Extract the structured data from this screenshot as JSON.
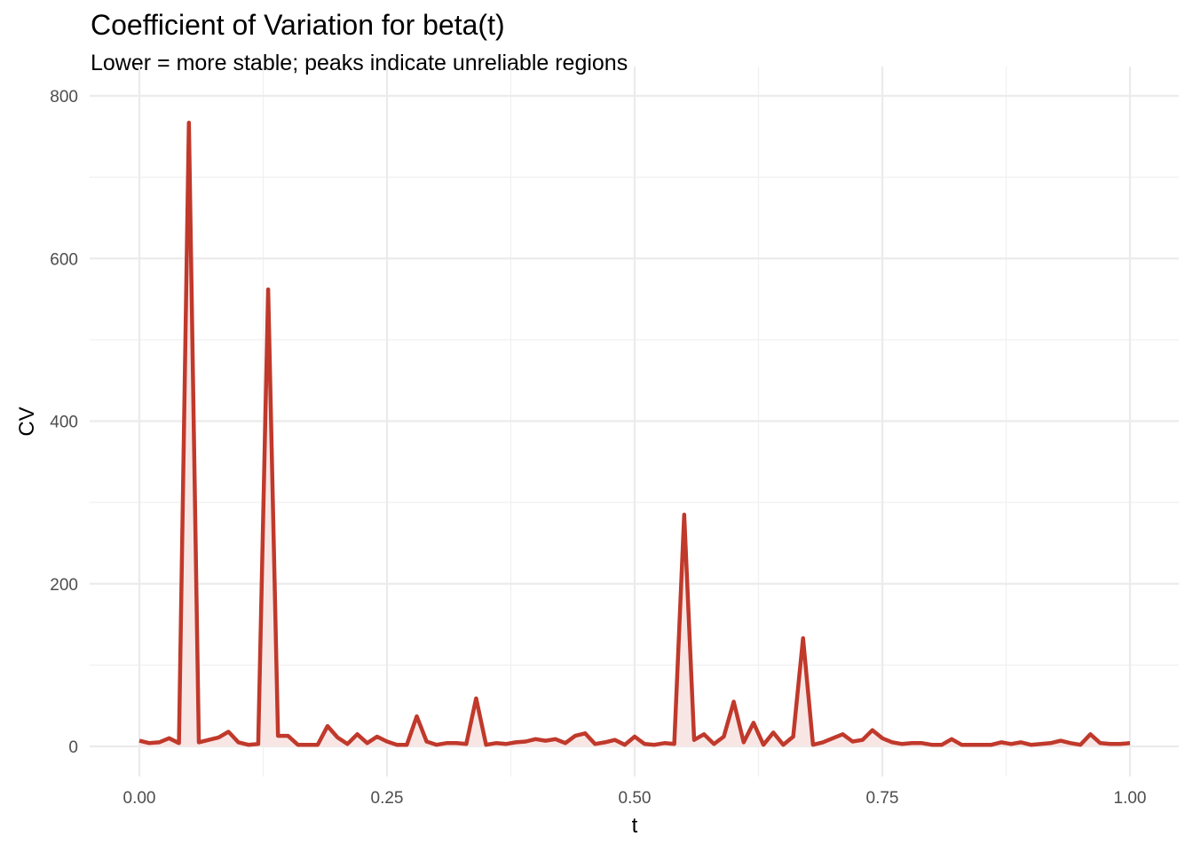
{
  "chart_data": {
    "type": "line",
    "title": "Coefficient of Variation for beta(t)",
    "subtitle": "Lower = more stable; peaks indicate unreliable regions",
    "xlabel": "t",
    "ylabel": "CV",
    "xlim": [
      0,
      1
    ],
    "ylim": [
      0,
      800
    ],
    "x_ticks": [
      0,
      0.25,
      0.5,
      0.75,
      1
    ],
    "x_tick_labels": [
      "0.00",
      "0.25",
      "0.50",
      "0.75",
      "1.00"
    ],
    "y_ticks": [
      0,
      200,
      400,
      600,
      800
    ],
    "y_tick_labels": [
      "0",
      "200",
      "400",
      "600",
      "800"
    ],
    "grid": true,
    "line_color": "#C0392B",
    "fill_color": "#F8E6E5",
    "x_start": 0,
    "x_step": 0.01,
    "values": [
      7,
      4,
      5,
      10,
      4,
      767,
      5,
      8,
      11,
      18,
      5,
      2,
      3,
      562,
      13,
      13,
      2,
      2,
      2,
      25,
      11,
      3,
      15,
      4,
      12,
      6,
      2,
      2,
      37,
      6,
      2,
      4,
      4,
      3,
      59,
      2,
      4,
      3,
      5,
      6,
      9,
      7,
      9,
      4,
      13,
      16,
      3,
      5,
      8,
      2,
      12,
      3,
      2,
      4,
      3,
      285,
      8,
      15,
      3,
      12,
      55,
      5,
      29,
      2,
      17,
      2,
      12,
      133,
      2,
      5,
      10,
      15,
      6,
      8,
      20,
      10,
      5,
      3,
      4,
      4,
      2,
      2,
      9,
      2,
      2,
      2,
      2,
      5,
      3,
      5,
      2,
      3,
      4,
      7,
      4,
      2,
      15,
      4,
      3,
      3,
      4
    ]
  }
}
